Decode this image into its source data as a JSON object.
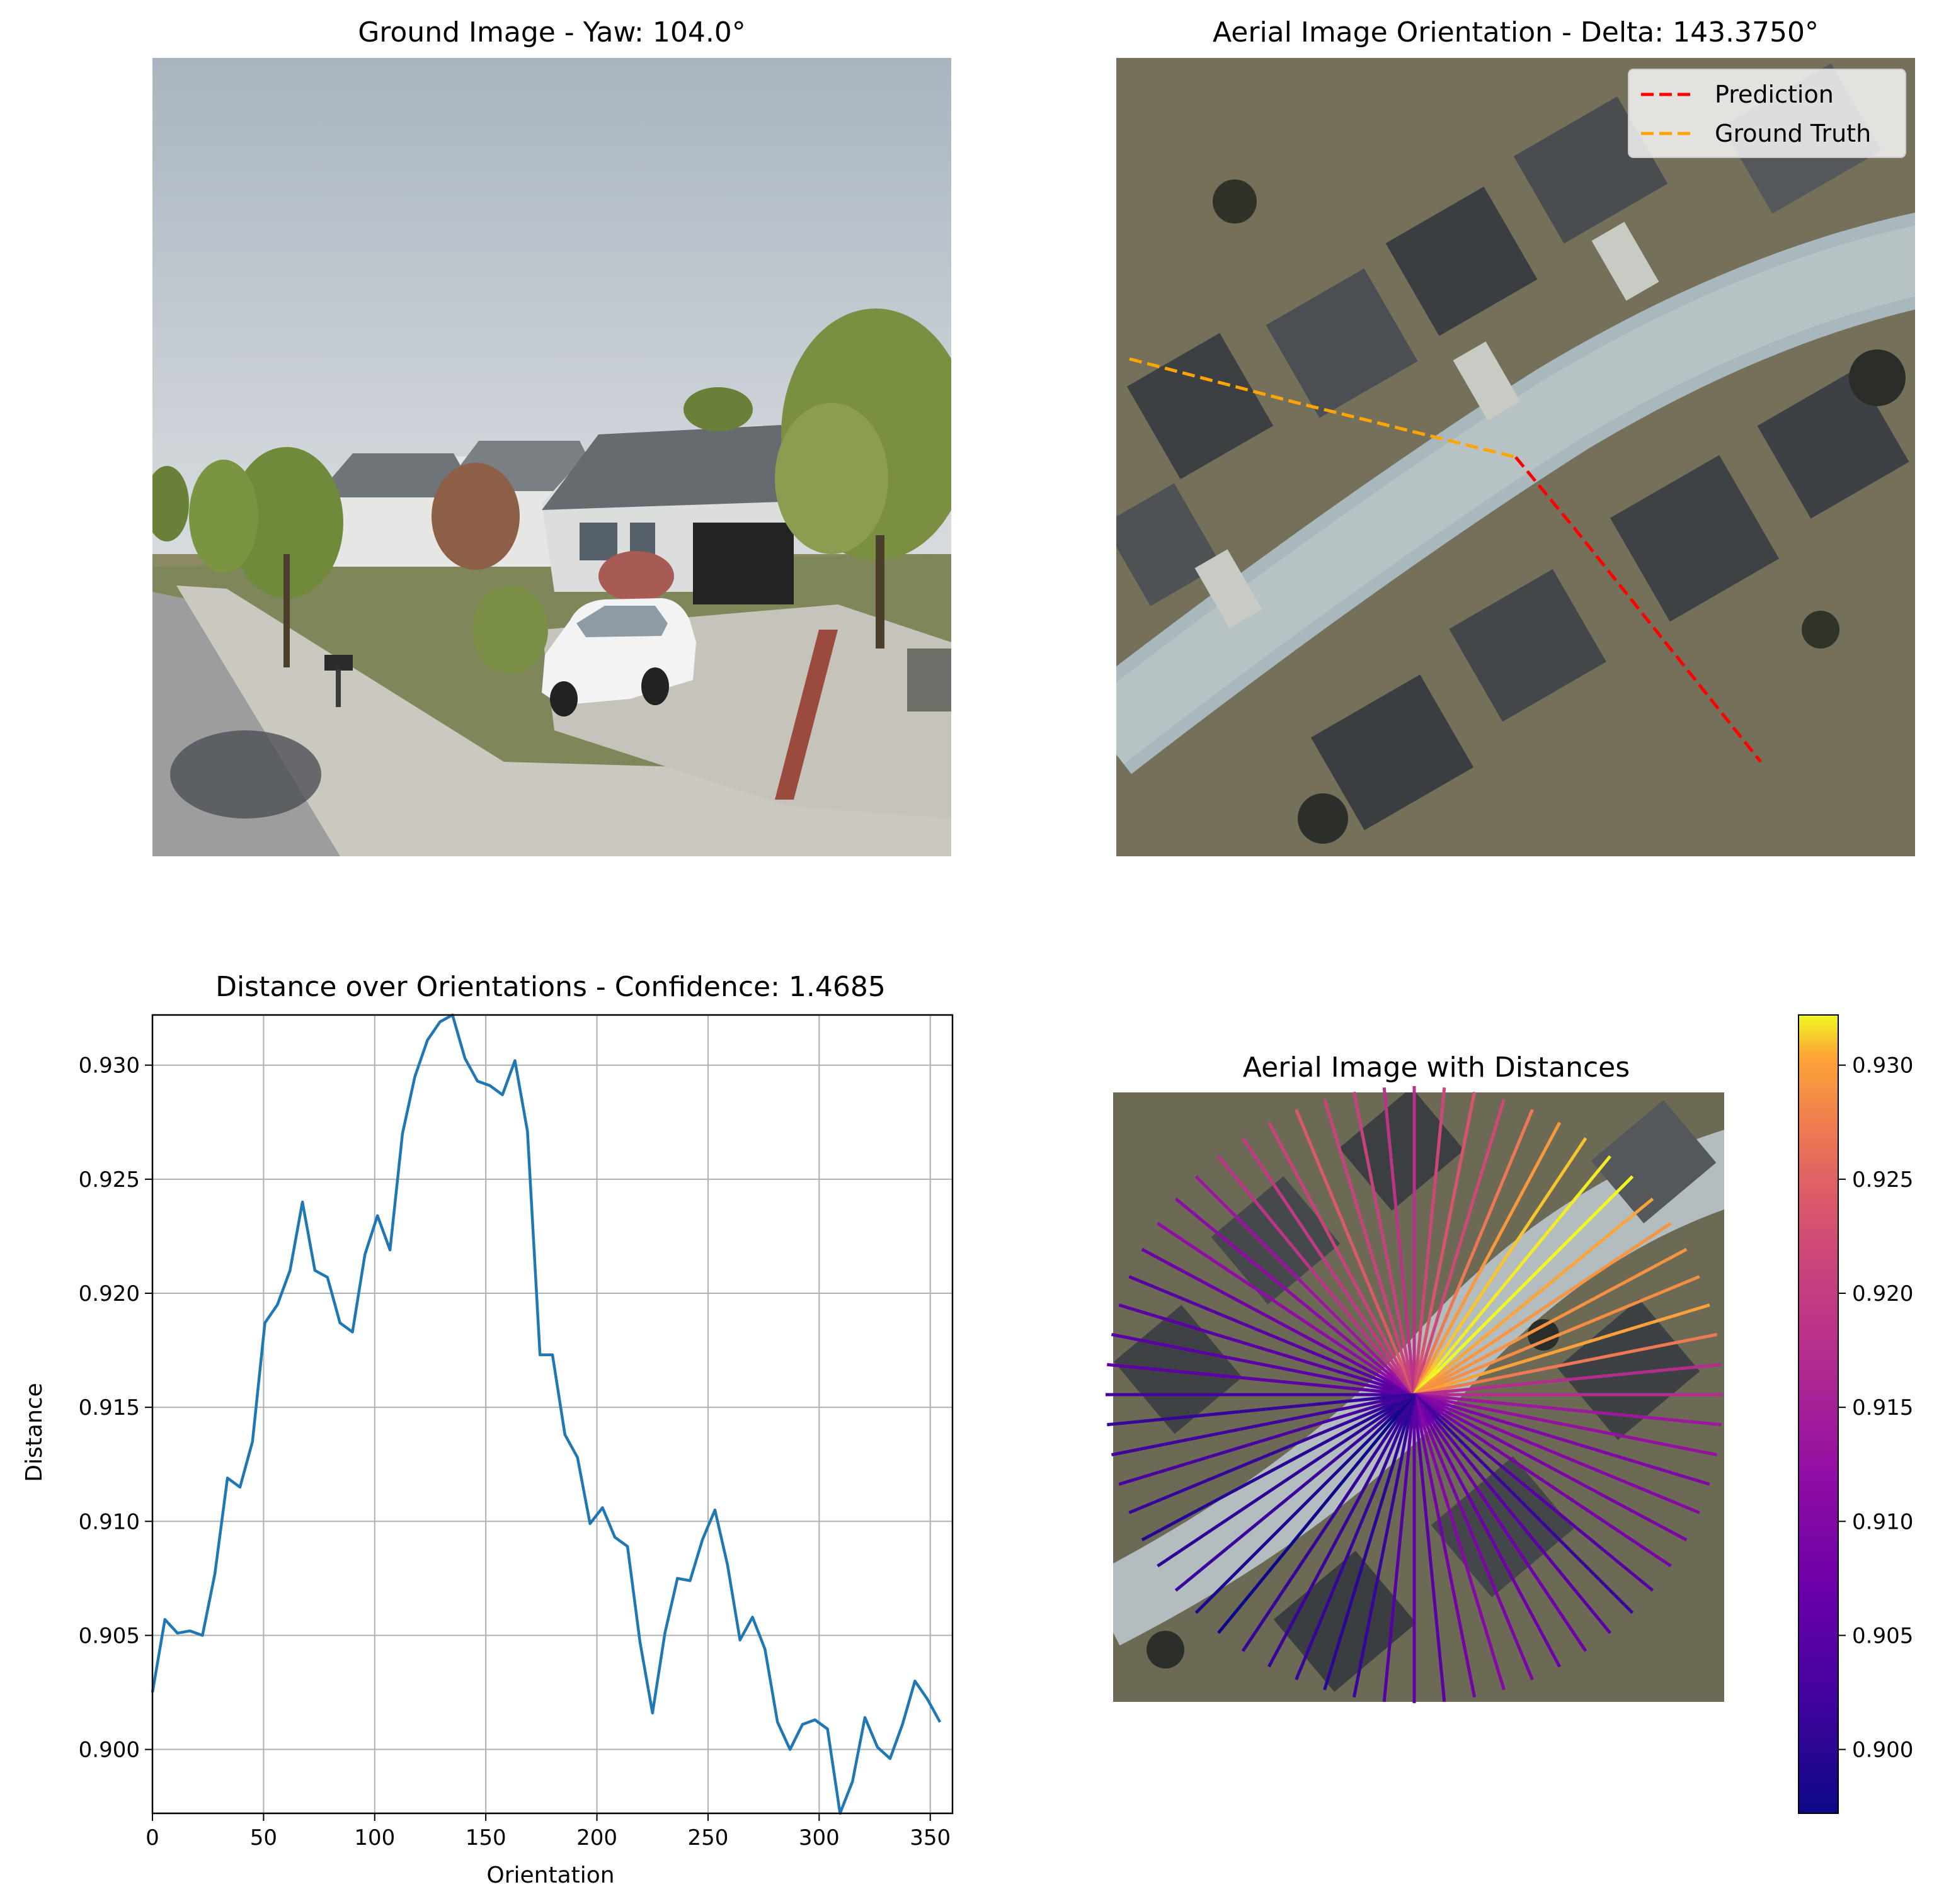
{
  "panels": {
    "ground": {
      "title": "Ground Image - Yaw: 104.0°"
    },
    "aerial_orientation": {
      "title": "Aerial Image Orientation - Delta: 143.3750°",
      "legend": [
        {
          "label": "Prediction",
          "color": "#ff0000"
        },
        {
          "label": "Ground Truth",
          "color": "#ffa500"
        }
      ]
    },
    "aerial_distances": {
      "title": "Aerial Image with Distances",
      "colormap": "plasma"
    }
  },
  "chart_data": [
    {
      "type": "line",
      "title": "Distance over Orientations - Confidence: 1.4685",
      "xlabel": "Orientation",
      "ylabel": "Distance",
      "xlim": [
        0,
        360
      ],
      "ylim": [
        0.8972,
        0.9322
      ],
      "grid": true,
      "color": "#1f77b4",
      "xticks": [
        0,
        50,
        100,
        150,
        200,
        250,
        300,
        350
      ],
      "yticks": [
        0.9,
        0.905,
        0.91,
        0.915,
        0.92,
        0.925,
        0.93
      ],
      "x": [
        0,
        5.6,
        11.25,
        16.9,
        22.5,
        28.1,
        33.75,
        39.4,
        45,
        50.6,
        56.25,
        61.9,
        67.5,
        73.1,
        78.75,
        84.4,
        90,
        95.6,
        101.25,
        106.9,
        112.5,
        118.1,
        123.75,
        129.4,
        135,
        140.6,
        146.25,
        151.9,
        157.5,
        163.1,
        168.75,
        174.4,
        180,
        185.6,
        191.25,
        196.9,
        202.5,
        208.1,
        213.75,
        219.4,
        225,
        230.6,
        236.25,
        241.9,
        247.5,
        253.1,
        258.75,
        264.4,
        270,
        275.6,
        281.25,
        286.9,
        292.5,
        298.1,
        303.75,
        309.4,
        315,
        320.6,
        326.25,
        331.9,
        337.5,
        343.1,
        348.75,
        354.4
      ],
      "values": [
        0.9025,
        0.9057,
        0.9051,
        0.9052,
        0.905,
        0.9077,
        0.9119,
        0.9115,
        0.9135,
        0.9187,
        0.9195,
        0.921,
        0.924,
        0.921,
        0.9207,
        0.9187,
        0.9183,
        0.9217,
        0.9234,
        0.9219,
        0.927,
        0.9295,
        0.9311,
        0.9319,
        0.9322,
        0.9303,
        0.9293,
        0.9291,
        0.9287,
        0.9302,
        0.9271,
        0.9173,
        0.9173,
        0.9138,
        0.9128,
        0.9099,
        0.9106,
        0.9093,
        0.9089,
        0.9047,
        0.9016,
        0.9051,
        0.9075,
        0.9074,
        0.9092,
        0.9105,
        0.9081,
        0.9048,
        0.9058,
        0.9044,
        0.9012,
        0.9,
        0.9011,
        0.9013,
        0.9009,
        0.8972,
        0.8986,
        0.9014,
        0.9001,
        0.8996,
        0.9011,
        0.903,
        0.9022,
        0.9012
      ]
    },
    {
      "type": "colorbar",
      "colormap": "plasma",
      "range": [
        0.8972,
        0.9322
      ],
      "ticks": [
        0.9,
        0.905,
        0.91,
        0.915,
        0.92,
        0.925,
        0.93
      ]
    }
  ]
}
